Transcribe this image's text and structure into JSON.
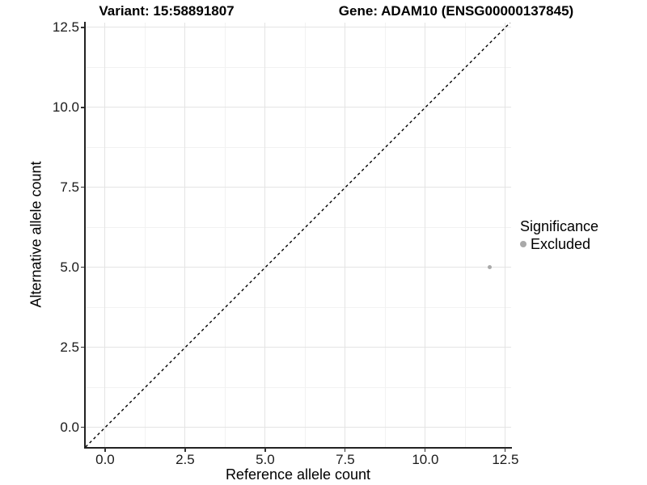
{
  "chart_data": {
    "type": "scatter",
    "title_left": "Variant: 15:58891807",
    "title_right": "Gene: ADAM10 (ENSG00000137845)",
    "xlabel": "Reference allele count",
    "ylabel": "Alternative allele count",
    "xlim": [
      -0.63,
      12.68
    ],
    "ylim": [
      -0.61,
      12.65
    ],
    "x_ticks": [
      0,
      2.5,
      5,
      7.5,
      10,
      12.5
    ],
    "x_tick_labels": [
      "0.0",
      "2.5",
      "5.0",
      "7.5",
      "10.0",
      "12.5"
    ],
    "y_ticks": [
      0,
      2.5,
      5,
      7.5,
      10,
      12.5
    ],
    "y_tick_labels": [
      "0.0",
      "2.5",
      "5.0",
      "7.5",
      "10.0",
      "12.5"
    ],
    "grid": {
      "major": true,
      "minor": true
    },
    "identity_line": {
      "show": true,
      "slope": 1,
      "intercept": 0,
      "style": "dashed",
      "color": "#000000"
    },
    "series": [
      {
        "name": "Excluded",
        "color": "#A9A9A9",
        "point_radius": 2.5,
        "points": [
          {
            "x": 12,
            "y": 5
          }
        ]
      }
    ],
    "legend": {
      "position": "right",
      "title": "Significance",
      "entries": [
        {
          "label": "Excluded",
          "color": "#A9A9A9"
        }
      ]
    }
  },
  "colors": {
    "background": "#FFFFFF",
    "grid_major": "#E4E4E4",
    "grid_minor": "#F2F2F2",
    "axis_line": "#222222",
    "tick_mark": "#333333",
    "text": "#000000"
  }
}
